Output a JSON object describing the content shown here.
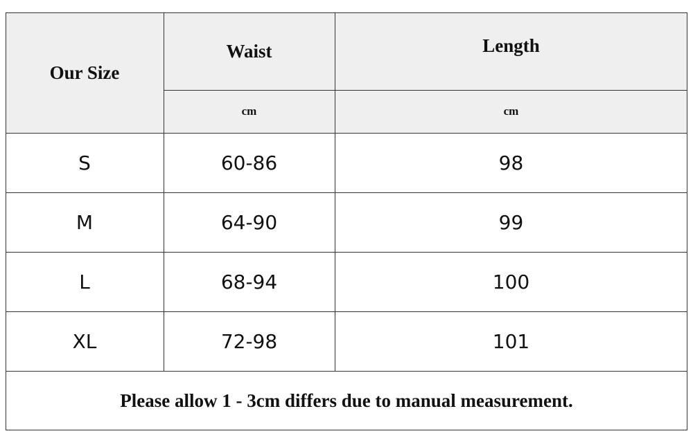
{
  "table": {
    "header": {
      "size": "Our Size",
      "columns": [
        "Waist",
        "Length"
      ],
      "units": [
        "cm",
        "cm"
      ]
    },
    "rows": [
      [
        "S",
        "60-86",
        "98"
      ],
      [
        "M",
        "64-90",
        "99"
      ],
      [
        "L",
        "68-94",
        "100"
      ],
      [
        "XL",
        "72-98",
        "101"
      ]
    ],
    "note": "Please allow 1 - 3cm differs due to manual measurement."
  }
}
